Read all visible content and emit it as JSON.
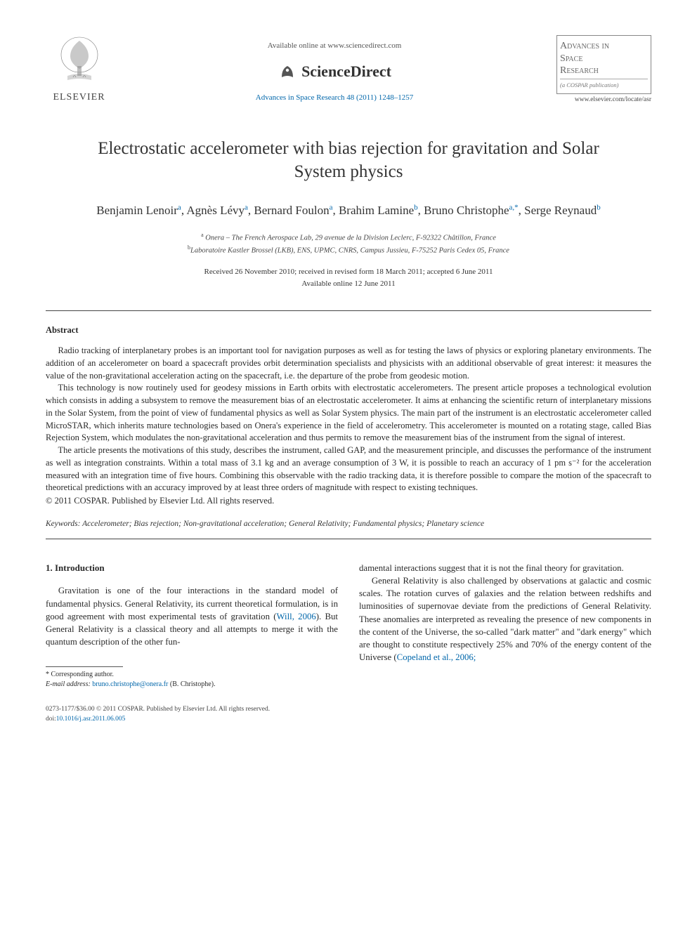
{
  "header": {
    "publisher_name": "ELSEVIER",
    "available_text": "Available online at www.sciencedirect.com",
    "sd_brand": "ScienceDirect",
    "citation": "Advances in Space Research 48 (2011) 1248–1257",
    "journal_title_l1": "Advances in",
    "journal_title_l2": "Space",
    "journal_title_l3": "Research",
    "cospar_note": "(a COSPAR publication)",
    "journal_url": "www.elsevier.com/locate/asr"
  },
  "article": {
    "title": "Electrostatic accelerometer with bias rejection for gravitation and Solar System physics",
    "authors_html": "Benjamin Lenoir<sup>a</sup>, Agnès Lévy<sup>a</sup>, Bernard Foulon<sup>a</sup>, Brahim Lamine<sup>b</sup>, Bruno Christophe<sup>a,*</sup>, Serge Reynaud<sup>b</sup>",
    "affiliation_a": "Onera – The French Aerospace Lab, 29 avenue de la Division Leclerc, F-92322 Châtillon, France",
    "affiliation_b": "Laboratoire Kastler Brossel (LKB), ENS, UPMC, CNRS, Campus Jussieu, F-75252 Paris Cedex 05, France",
    "dates_l1": "Received 26 November 2010; received in revised form 18 March 2011; accepted 6 June 2011",
    "dates_l2": "Available online 12 June 2011"
  },
  "abstract": {
    "heading": "Abstract",
    "p1": "Radio tracking of interplanetary probes is an important tool for navigation purposes as well as for testing the laws of physics or exploring planetary environments. The addition of an accelerometer on board a spacecraft provides orbit determination specialists and physicists with an additional observable of great interest: it measures the value of the non-gravitational acceleration acting on the spacecraft, i.e. the departure of the probe from geodesic motion.",
    "p2": "This technology is now routinely used for geodesy missions in Earth orbits with electrostatic accelerometers. The present article proposes a technological evolution which consists in adding a subsystem to remove the measurement bias of an electrostatic accelerometer. It aims at enhancing the scientific return of interplanetary missions in the Solar System, from the point of view of fundamental physics as well as Solar System physics. The main part of the instrument is an electrostatic accelerometer called MicroSTAR, which inherits mature technologies based on Onera's experience in the field of accelerometry. This accelerometer is mounted on a rotating stage, called Bias Rejection System, which modulates the non-gravitational acceleration and thus permits to remove the measurement bias of the instrument from the signal of interest.",
    "p3": "The article presents the motivations of this study, describes the instrument, called GAP, and the measurement principle, and discusses the performance of the instrument as well as integration constraints. Within a total mass of 3.1 kg and an average consumption of 3 W, it is possible to reach an accuracy of 1 pm s⁻² for the acceleration measured with an integration time of five hours. Combining this observable with the radio tracking data, it is therefore possible to compare the motion of the spacecraft to theoretical predictions with an accuracy improved by at least three orders of magnitude with respect to existing techniques.",
    "copyright": "© 2011 COSPAR. Published by Elsevier Ltd. All rights reserved."
  },
  "keywords": {
    "label": "Keywords:",
    "list": "Accelerometer; Bias rejection; Non-gravitational acceleration; General Relativity; Fundamental physics; Planetary science"
  },
  "body": {
    "section_num": "1.",
    "section_title": "Introduction",
    "col1_p1_a": "Gravitation is one of the four interactions in the standard model of fundamental physics. General Relativity, its current theoretical formulation, is in good agreement with most experimental tests of gravitation (",
    "col1_p1_ref": "Will, 2006",
    "col1_p1_b": "). But General Relativity is a classical theory and all attempts to merge it with the quantum description of the other fun-",
    "col2_p1": "damental interactions suggest that it is not the final theory for gravitation.",
    "col2_p2_a": "General Relativity is also challenged by observations at galactic and cosmic scales. The rotation curves of galaxies and the relation between redshifts and luminosities of supernovae deviate from the predictions of General Relativity. These anomalies are interpreted as revealing the presence of new components in the content of the Universe, the so-called \"dark matter\" and \"dark energy\" which are thought to constitute respectively 25% and 70% of the energy content of the Universe (",
    "col2_p2_ref": "Copeland et al., 2006;"
  },
  "footnote": {
    "corresponding": "* Corresponding author.",
    "email_label": "E-mail address:",
    "email": "bruno.christophe@onera.fr",
    "email_name": "(B. Christophe)."
  },
  "footer": {
    "line1": "0273-1177/$36.00 © 2011 COSPAR. Published by Elsevier Ltd. All rights reserved.",
    "doi_label": "doi:",
    "doi": "10.1016/j.asr.2011.06.005"
  },
  "colors": {
    "link": "#0066aa",
    "text": "#2a2a2a",
    "rule": "#444444"
  }
}
